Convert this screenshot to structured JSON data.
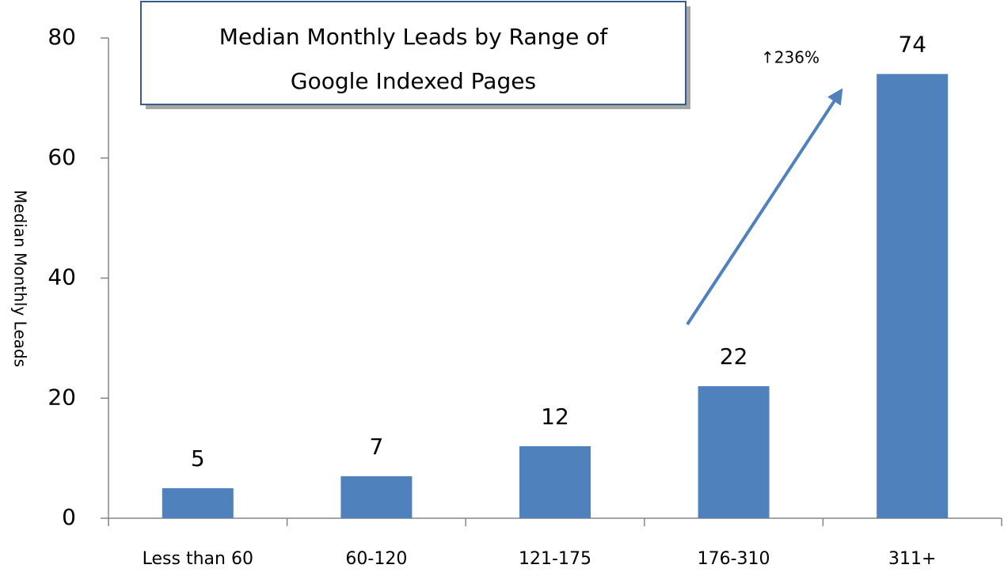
{
  "chart_data": {
    "type": "bar",
    "title": [
      "Median Monthly Leads by Range of",
      "Google Indexed Pages"
    ],
    "y_label": "Median Monthly Leads",
    "annotation": "↑236%",
    "categories": [
      "Less than 60",
      "60-120",
      "121-175",
      "176-310",
      "311+"
    ],
    "values": [
      5,
      7,
      12,
      22,
      74
    ],
    "color": "#4f81bd",
    "ylim": [
      0,
      80
    ],
    "yticks": [
      0,
      20,
      40,
      60,
      80
    ],
    "grid": false
  }
}
